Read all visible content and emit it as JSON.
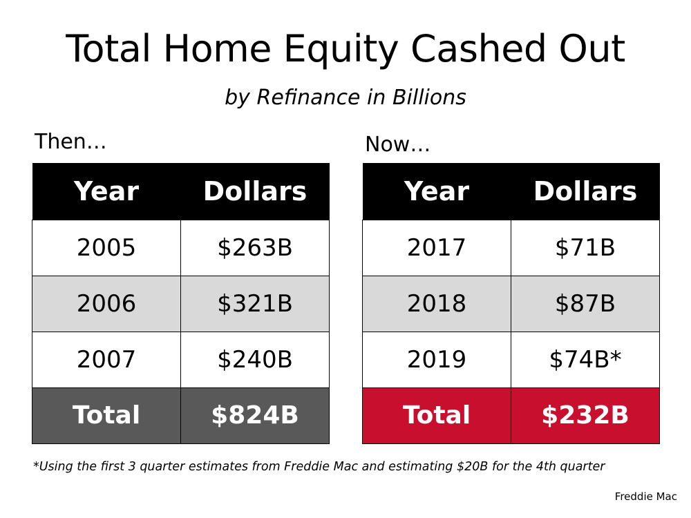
{
  "title": "Total Home Equity Cashed Out",
  "subtitle": "by Refinance in Billions",
  "then_label": "Then…",
  "now_label": "Now…",
  "footnote": "*Using the first 3 quarter estimates from Freddie Mac and estimating $20B for the 4th quarter",
  "source": "Freddie Mac",
  "colors": {
    "header_bg": "#000000",
    "then_total_bg": "#595959",
    "now_total_bg": "#c8102e",
    "alt_row_bg": "#d9d9d9"
  },
  "chart_data": [
    {
      "type": "table",
      "columns": [
        "Year",
        "Dollars"
      ],
      "rows": [
        [
          "2005",
          "$263B"
        ],
        [
          "2006",
          "$321B"
        ],
        [
          "2007",
          "$240B"
        ]
      ],
      "total": [
        "Total",
        "$824B"
      ]
    },
    {
      "type": "table",
      "columns": [
        "Year",
        "Dollars"
      ],
      "rows": [
        [
          "2017",
          "$71B"
        ],
        [
          "2018",
          "$87B"
        ],
        [
          "2019",
          "$74B*"
        ]
      ],
      "total": [
        "Total",
        "$232B"
      ]
    }
  ]
}
